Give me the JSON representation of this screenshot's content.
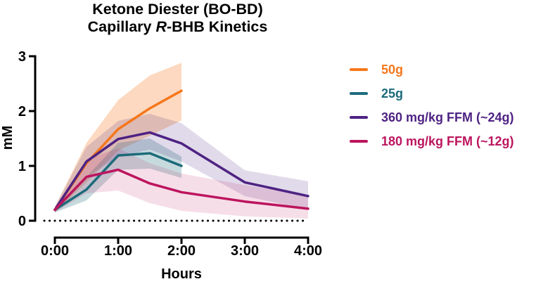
{
  "title": {
    "line1": "Ketone Diester (BO-BD)",
    "line2_prefix": "Capillary ",
    "line2_italic": "R",
    "line2_suffix": "-BHB Kinetics"
  },
  "chart_data": {
    "type": "line",
    "title": "Ketone Diester (BO-BD) Capillary R-BHB Kinetics",
    "xlabel": "Hours",
    "ylabel": "mM",
    "xlim": [
      0,
      4
    ],
    "ylim": [
      0,
      3
    ],
    "grid": false,
    "legend_position": "right",
    "baseline": {
      "value": 0,
      "style": "dotted",
      "color": "#000000"
    },
    "x_ticks": [
      {
        "value": 0,
        "label": "0:00"
      },
      {
        "value": 1,
        "label": "1:00"
      },
      {
        "value": 2,
        "label": "2:00"
      },
      {
        "value": 3,
        "label": "3:00"
      },
      {
        "value": 4,
        "label": "4:00"
      }
    ],
    "y_ticks": [
      {
        "value": 0,
        "label": "0"
      },
      {
        "value": 1,
        "label": "1"
      },
      {
        "value": 2,
        "label": "2"
      },
      {
        "value": 3,
        "label": "3"
      }
    ],
    "series": [
      {
        "name": "50g",
        "color": "#F5771B",
        "band_opacity": 0.28,
        "x": [
          0,
          0.5,
          1,
          1.5,
          2
        ],
        "y": [
          0.2,
          1.05,
          1.67,
          2.05,
          2.37
        ],
        "band_upper": [
          0.25,
          1.42,
          2.2,
          2.65,
          2.88
        ],
        "band_lower": [
          0.15,
          0.7,
          1.28,
          1.55,
          1.83
        ]
      },
      {
        "name": "25g",
        "color": "#1C6B7A",
        "band_opacity": 0.25,
        "x": [
          0,
          0.5,
          1,
          1.5,
          2
        ],
        "y": [
          0.2,
          0.57,
          1.19,
          1.23,
          1.0
        ],
        "band_upper": [
          0.25,
          0.8,
          1.42,
          1.5,
          1.17
        ],
        "band_lower": [
          0.15,
          0.37,
          0.93,
          0.95,
          0.78
        ]
      },
      {
        "name": "360 mg/kg FFM (~24g)",
        "color": "#4E2383",
        "band_opacity": 0.17,
        "x": [
          0,
          0.5,
          1,
          1.5,
          2,
          3,
          4
        ],
        "y": [
          0.2,
          1.08,
          1.49,
          1.61,
          1.41,
          0.7,
          0.45
        ],
        "band_upper": [
          0.25,
          1.35,
          1.82,
          1.95,
          1.78,
          0.92,
          0.72
        ],
        "band_lower": [
          0.15,
          0.8,
          1.16,
          1.3,
          1.08,
          0.45,
          0.2
        ]
      },
      {
        "name": "180 mg/kg FFM (~12g)",
        "color": "#BC155E",
        "band_opacity": 0.14,
        "x": [
          0,
          0.5,
          1,
          1.5,
          2,
          3,
          4
        ],
        "y": [
          0.2,
          0.8,
          0.93,
          0.68,
          0.52,
          0.35,
          0.22
        ],
        "band_upper": [
          0.25,
          1.12,
          1.32,
          1.05,
          0.86,
          0.65,
          0.46
        ],
        "band_lower": [
          0.15,
          0.5,
          0.55,
          0.32,
          0.18,
          0.08,
          0.04
        ]
      }
    ]
  }
}
